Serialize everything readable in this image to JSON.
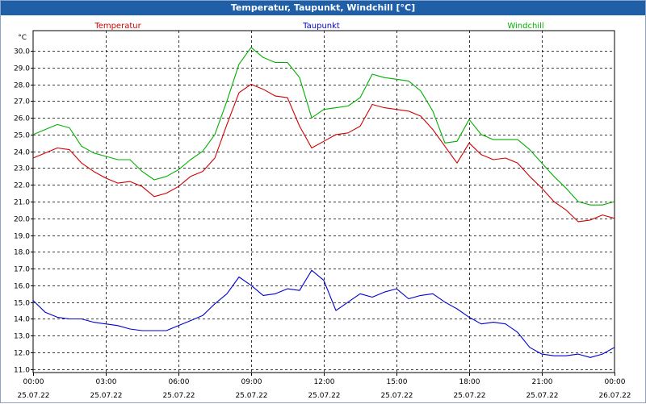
{
  "chart_data": {
    "type": "line",
    "title": "Temperatur, Taupunkt, Windchill [°C]",
    "ylabel": "°C",
    "xlabel": "",
    "ylim": [
      10.8,
      31.2
    ],
    "xlim": [
      0,
      24
    ],
    "grid": true,
    "y_ticks": [
      11.0,
      12.0,
      13.0,
      14.0,
      15.0,
      16.0,
      17.0,
      18.0,
      19.0,
      20.0,
      21.0,
      22.0,
      23.0,
      24.0,
      25.0,
      26.0,
      27.0,
      28.0,
      29.0,
      30.0
    ],
    "x_ticks": [
      {
        "x": 0,
        "time": "00:00",
        "date": "25.07.22"
      },
      {
        "x": 3,
        "time": "03:00",
        "date": "25.07.22"
      },
      {
        "x": 6,
        "time": "06:00",
        "date": "25.07.22"
      },
      {
        "x": 9,
        "time": "09:00",
        "date": "25.07.22"
      },
      {
        "x": 12,
        "time": "12:00",
        "date": "25.07.22"
      },
      {
        "x": 15,
        "time": "15:00",
        "date": "25.07.22"
      },
      {
        "x": 18,
        "time": "18:00",
        "date": "25.07.22"
      },
      {
        "x": 21,
        "time": "21:00",
        "date": "25.07.22"
      },
      {
        "x": 24,
        "time": "00:00",
        "date": "26.07.22"
      }
    ],
    "x": [
      0,
      0.5,
      1,
      1.5,
      2,
      2.5,
      3,
      3.5,
      4,
      4.5,
      5,
      5.5,
      6,
      6.5,
      7,
      7.5,
      8,
      8.5,
      9,
      9.5,
      10,
      10.5,
      11,
      11.5,
      12,
      12.5,
      13,
      13.5,
      14,
      14.5,
      15,
      15.5,
      16,
      16.5,
      17,
      17.5,
      18,
      18.5,
      19,
      19.5,
      20,
      20.5,
      21,
      21.5,
      22,
      22.5,
      23,
      23.5,
      24
    ],
    "series": [
      {
        "name": "Temperatur",
        "color": "#d00000",
        "legend_pos": "left",
        "values": [
          23.6,
          23.9,
          24.2,
          24.1,
          23.3,
          22.8,
          22.4,
          22.1,
          22.2,
          21.9,
          21.3,
          21.5,
          21.9,
          22.5,
          22.8,
          23.6,
          25.6,
          27.5,
          28.0,
          27.7,
          27.3,
          27.2,
          25.5,
          24.2,
          24.6,
          25.0,
          25.1,
          25.5,
          26.8,
          26.6,
          26.5,
          26.4,
          26.1,
          25.3,
          24.3,
          23.3,
          24.5,
          23.8,
          23.5,
          23.6,
          23.3,
          22.5,
          21.8,
          21.0,
          20.5,
          19.8,
          19.9,
          20.2,
          20.0
        ]
      },
      {
        "name": "Taupunkt",
        "color": "#0000d0",
        "legend_pos": "center",
        "values": [
          15.1,
          14.4,
          14.1,
          14.0,
          14.0,
          13.8,
          13.7,
          13.6,
          13.4,
          13.3,
          13.3,
          13.3,
          13.6,
          13.9,
          14.2,
          14.9,
          15.5,
          16.5,
          16.0,
          15.4,
          15.5,
          15.8,
          15.7,
          16.9,
          16.3,
          14.5,
          15.0,
          15.5,
          15.3,
          15.6,
          15.8,
          15.2,
          15.4,
          15.5,
          15.0,
          14.6,
          14.1,
          13.7,
          13.8,
          13.7,
          13.2,
          12.3,
          11.9,
          11.8,
          11.8,
          11.9,
          11.7,
          11.9,
          12.3
        ]
      },
      {
        "name": "Windchill",
        "color": "#00b000",
        "legend_pos": "right",
        "values": [
          25.0,
          25.3,
          25.6,
          25.4,
          24.3,
          23.9,
          23.7,
          23.5,
          23.5,
          22.8,
          22.3,
          22.5,
          22.9,
          23.5,
          24.0,
          25.0,
          27.0,
          29.2,
          30.2,
          29.6,
          29.3,
          29.3,
          28.4,
          26.0,
          26.5,
          26.6,
          26.7,
          27.2,
          28.6,
          28.4,
          28.3,
          28.2,
          27.6,
          26.4,
          24.5,
          24.6,
          25.9,
          25.0,
          24.7,
          24.7,
          24.7,
          24.1,
          23.3,
          22.5,
          21.8,
          21.0,
          20.8,
          20.8,
          21.0
        ]
      }
    ]
  }
}
